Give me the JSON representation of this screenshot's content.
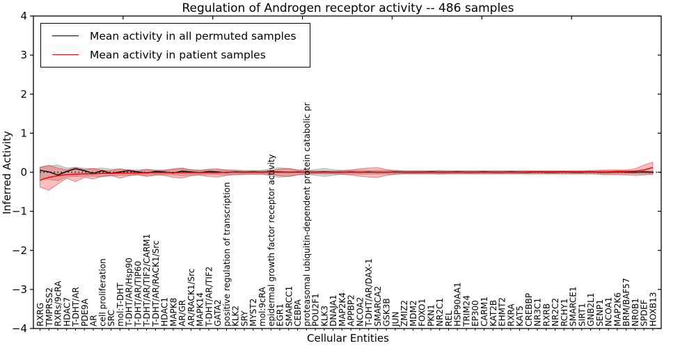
{
  "legend": {
    "items": [
      {
        "label": "Mean activity in all permuted samples",
        "color": "#000000"
      },
      {
        "label": "Mean activity in patient samples",
        "color": "#ff0000"
      }
    ]
  },
  "chart_data": {
    "type": "line",
    "title": "Regulation of Androgen receptor activity -- 486 samples",
    "xlabel": "Cellular Entities",
    "ylabel": "Inferred Activity",
    "ylim": [
      -4,
      4
    ],
    "yticks": [
      -4,
      -3,
      -2,
      -1,
      0,
      1,
      2,
      3,
      4
    ],
    "grid": false,
    "zero_line": true,
    "legend_position": "upper left",
    "categories": [
      "RXRG",
      "TMPRSS2",
      "RXRs/9cRA",
      "HDAC7",
      "T-DHT/AR",
      "PDE9A",
      "AR",
      "cell proliferation",
      "SRC",
      "mol:T-DHT",
      "T-DHT/AR/Hsp90",
      "T-DHT/AR/TIP60",
      "T-DHT/AR/TIF2/CARM1",
      "T-DHT/AR/RACK1/Src",
      "HDAC1",
      "MAPK8",
      "AR/GR",
      "AR/RACK1/Src",
      "MAPK14",
      "T-DHT/AR/TIF2",
      "GATA2",
      "positive regulation of transcription",
      "KLK2",
      "SRY",
      "MYST2",
      "mol:9cRA",
      "epidermal growth factor receptor activity",
      "EGR1",
      "SMARCC1",
      "CEBPA",
      "proteasomal ubiquitin-dependent protein catabolic pr",
      "POU2F1",
      "KLK3",
      "DNAJA1",
      "MAP2K4",
      "APPBP2",
      "NCOA2",
      "T-DHT/AR/DAX-1",
      "SMARCA2",
      "GSK3B",
      "JUN",
      "ZMIZ2",
      "MDM2",
      "FOXO1",
      "PKN1",
      "NR2C1",
      "REL",
      "HSP90AA1",
      "TRIM24",
      "EP300",
      "CARM1",
      "KAT2B",
      "EHMT2",
      "RXRA",
      "KAT5",
      "CREBBP",
      "NR3C1",
      "RXRB",
      "NR2C2",
      "RCHY1",
      "SMARCE1",
      "SIRT1",
      "GNB2L1",
      "SENP1",
      "NCOA1",
      "MAP2K6",
      "BRM/BAF57",
      "NR0B1",
      "SPDEF",
      "HOXB13"
    ],
    "series": [
      {
        "id": "permuted-mean-line",
        "name": "Mean activity in all permuted samples",
        "color": "#000000",
        "values": [
          0.05,
          0.01,
          -0.07,
          0.02,
          0.09,
          0.04,
          -0.03,
          0.04,
          -0.03,
          0.01,
          0.04,
          0.01,
          -0.02,
          0.02,
          0.01,
          -0.02,
          0.03,
          0.01,
          -0.01,
          0.02,
          0.01,
          -0.01,
          0.01,
          0.0,
          0.01,
          0.0,
          0.01,
          0.01,
          0.0,
          0.01,
          0.0,
          0.0,
          0.01,
          0.0,
          0.0,
          0.01,
          0.0,
          0.01,
          0.0,
          0.0,
          0.01,
          0.0,
          0.0,
          0.0,
          0.01,
          0.0,
          0.0,
          0.01,
          0.0,
          0.0,
          0.01,
          0.0,
          0.0,
          0.01,
          0.0,
          0.0,
          0.01,
          0.0,
          0.0,
          0.01,
          0.0,
          0.0,
          0.01,
          0.0,
          0.0,
          0.01,
          0.0,
          0.0,
          0.01,
          0.0
        ]
      },
      {
        "id": "patient-mean-line",
        "name": "Mean activity in patient samples",
        "color": "#ff0000",
        "values": [
          -0.2,
          -0.13,
          -0.09,
          -0.06,
          -0.05,
          -0.04,
          -0.04,
          -0.03,
          -0.03,
          -0.02,
          -0.02,
          -0.02,
          -0.01,
          -0.01,
          -0.01,
          -0.01,
          -0.01,
          -0.01,
          -0.01,
          -0.01,
          -0.01,
          0.0,
          0.0,
          0.0,
          0.0,
          0.0,
          0.0,
          0.0,
          0.0,
          0.0,
          0.0,
          0.0,
          0.0,
          0.0,
          0.0,
          0.0,
          0.0,
          0.0,
          0.0,
          0.0,
          0.0,
          0.0,
          0.0,
          0.0,
          0.0,
          0.0,
          0.0,
          0.0,
          0.0,
          0.0,
          0.0,
          0.0,
          0.0,
          0.0,
          0.0,
          0.01,
          0.01,
          0.01,
          0.01,
          0.01,
          0.01,
          0.01,
          0.01,
          0.01,
          0.01,
          0.02,
          0.02,
          0.03,
          0.06,
          0.12
        ]
      }
    ],
    "bands": [
      {
        "name": "permuted-range",
        "fill": "rgba(120,120,120,0.30)",
        "edge": "rgba(120,120,120,0.45)",
        "upper": [
          0.13,
          0.16,
          0.19,
          0.11,
          0.13,
          0.1,
          0.09,
          0.11,
          0.08,
          0.08,
          0.07,
          0.06,
          0.08,
          0.06,
          0.06,
          0.07,
          0.09,
          0.07,
          0.06,
          0.06,
          0.06,
          0.07,
          0.06,
          0.05,
          0.05,
          0.05,
          0.09,
          0.12,
          0.09,
          0.06,
          0.05,
          0.07,
          0.1,
          0.07,
          0.05,
          0.05,
          0.05,
          0.05,
          0.05,
          0.05,
          0.05,
          0.04,
          0.04,
          0.04,
          0.04,
          0.05,
          0.04,
          0.04,
          0.04,
          0.04,
          0.04,
          0.04,
          0.04,
          0.04,
          0.04,
          0.04,
          0.04,
          0.04,
          0.04,
          0.04,
          0.04,
          0.04,
          0.04,
          0.04,
          0.04,
          0.04,
          0.04,
          0.04,
          0.04,
          0.04
        ],
        "lower": [
          -0.14,
          -0.18,
          -0.22,
          -0.12,
          -0.11,
          -0.1,
          -0.1,
          -0.12,
          -0.09,
          -0.08,
          -0.08,
          -0.07,
          -0.08,
          -0.07,
          -0.06,
          -0.07,
          -0.09,
          -0.07,
          -0.06,
          -0.06,
          -0.06,
          -0.07,
          -0.06,
          -0.05,
          -0.05,
          -0.05,
          -0.1,
          -0.13,
          -0.1,
          -0.06,
          -0.05,
          -0.08,
          -0.11,
          -0.08,
          -0.05,
          -0.05,
          -0.05,
          -0.05,
          -0.05,
          -0.05,
          -0.05,
          -0.04,
          -0.04,
          -0.04,
          -0.04,
          -0.05,
          -0.04,
          -0.04,
          -0.04,
          -0.04,
          -0.04,
          -0.04,
          -0.04,
          -0.04,
          -0.04,
          -0.04,
          -0.04,
          -0.04,
          -0.04,
          -0.04,
          -0.04,
          -0.04,
          -0.04,
          -0.04,
          -0.04,
          -0.04,
          -0.04,
          -0.04,
          -0.04,
          -0.04
        ]
      },
      {
        "name": "patient-range",
        "fill": "rgba(255,0,0,0.25)",
        "edge": "rgba(220,0,0,0.45)",
        "upper": [
          0.13,
          0.18,
          0.11,
          0.06,
          0.12,
          0.07,
          0.1,
          0.05,
          0.04,
          0.09,
          0.05,
          0.03,
          0.07,
          0.04,
          0.05,
          0.09,
          0.11,
          0.06,
          0.04,
          0.08,
          0.09,
          0.05,
          0.04,
          0.03,
          0.03,
          0.03,
          0.04,
          0.08,
          0.1,
          0.06,
          0.04,
          0.03,
          0.03,
          0.03,
          0.04,
          0.06,
          0.09,
          0.11,
          0.12,
          0.07,
          0.04,
          0.03,
          0.03,
          0.03,
          0.03,
          0.03,
          0.03,
          0.03,
          0.03,
          0.03,
          0.03,
          0.03,
          0.03,
          0.03,
          0.03,
          0.03,
          0.03,
          0.03,
          0.03,
          0.03,
          0.03,
          0.03,
          0.04,
          0.05,
          0.06,
          0.06,
          0.06,
          0.09,
          0.18,
          0.26
        ],
        "lower": [
          -0.38,
          -0.46,
          -0.3,
          -0.15,
          -0.24,
          -0.13,
          -0.17,
          -0.1,
          -0.08,
          -0.15,
          -0.09,
          -0.06,
          -0.11,
          -0.07,
          -0.08,
          -0.13,
          -0.15,
          -0.09,
          -0.07,
          -0.11,
          -0.12,
          -0.08,
          -0.06,
          -0.05,
          -0.05,
          -0.05,
          -0.05,
          -0.09,
          -0.11,
          -0.07,
          -0.05,
          -0.04,
          -0.04,
          -0.04,
          -0.05,
          -0.07,
          -0.1,
          -0.12,
          -0.13,
          -0.08,
          -0.05,
          -0.04,
          -0.04,
          -0.04,
          -0.04,
          -0.04,
          -0.04,
          -0.04,
          -0.04,
          -0.04,
          -0.04,
          -0.04,
          -0.04,
          -0.04,
          -0.04,
          -0.04,
          -0.04,
          -0.04,
          -0.04,
          -0.04,
          -0.04,
          -0.04,
          -0.04,
          -0.05,
          -0.06,
          -0.06,
          -0.07,
          -0.08,
          -0.07,
          -0.05
        ]
      }
    ]
  }
}
